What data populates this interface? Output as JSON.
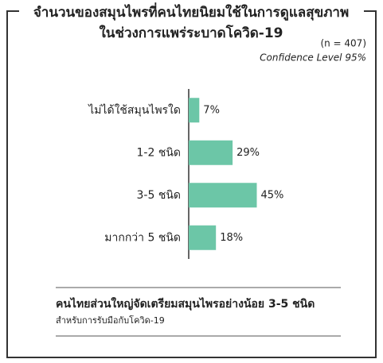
{
  "chart_data": {
    "type": "bar",
    "title": "จำนวนของสมุนไพรที่คนไทยนิยมใช้ในการดูแลสุขภาพ",
    "subtitle": "ในช่วงการแพร่ระบาดโควิด-19",
    "sample_note": "(n = 407)",
    "confidence_note": "Confidence Level 95%",
    "categories": [
      "ไม่ได้ใช้สมุนไพรใด",
      "1-2 ชนิด",
      "3-5 ชนิด",
      "มากกว่า 5 ชนิด"
    ],
    "values": [
      7,
      29,
      45,
      18
    ],
    "value_labels": [
      "7%",
      "29%",
      "45%",
      "18%"
    ],
    "color": "#6cc6a7",
    "footer_headline": "คนไทยส่วนใหญ่จัดเตรียมสมุนไพรอย่างน้อย 3-5 ชนิด",
    "footer_note": "สำหรับการรับมือกับโควิด-19"
  }
}
